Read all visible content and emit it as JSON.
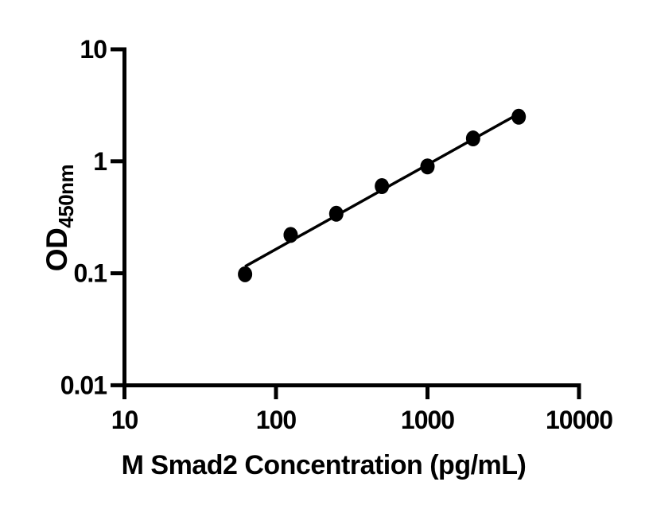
{
  "figure": {
    "background_color": "#ffffff",
    "ink_color": "#000000"
  },
  "chart_data": {
    "type": "scatter",
    "title": "",
    "xlabel": "M Smad2 Concentration (pg/mL)",
    "ylabel_main": "OD",
    "ylabel_sub": "450nm",
    "x_scale": "log10",
    "y_scale": "log10",
    "xlim": [
      10,
      10000
    ],
    "ylim": [
      0.01,
      10
    ],
    "grid": "off",
    "legend": "none",
    "x_ticks": {
      "values": [
        10,
        100,
        1000,
        10000
      ],
      "labels": [
        "10",
        "100",
        "1000",
        "10000"
      ]
    },
    "y_ticks": {
      "values": [
        10,
        1,
        0.1,
        0.01
      ],
      "labels": [
        "10",
        "1",
        "0.1",
        "0.01"
      ]
    },
    "series": [
      {
        "name": "standard-curve",
        "marker": "filled-circle",
        "marker_color": "#000000",
        "x": [
          62.5,
          125,
          250,
          500,
          1000,
          2000,
          4000
        ],
        "y": [
          0.098,
          0.22,
          0.34,
          0.6,
          0.9,
          1.6,
          2.5
        ]
      }
    ],
    "fit_line": {
      "type": "linear-regression-loglog",
      "color": "#000000",
      "x_start": 62.5,
      "x_end": 4000
    }
  }
}
